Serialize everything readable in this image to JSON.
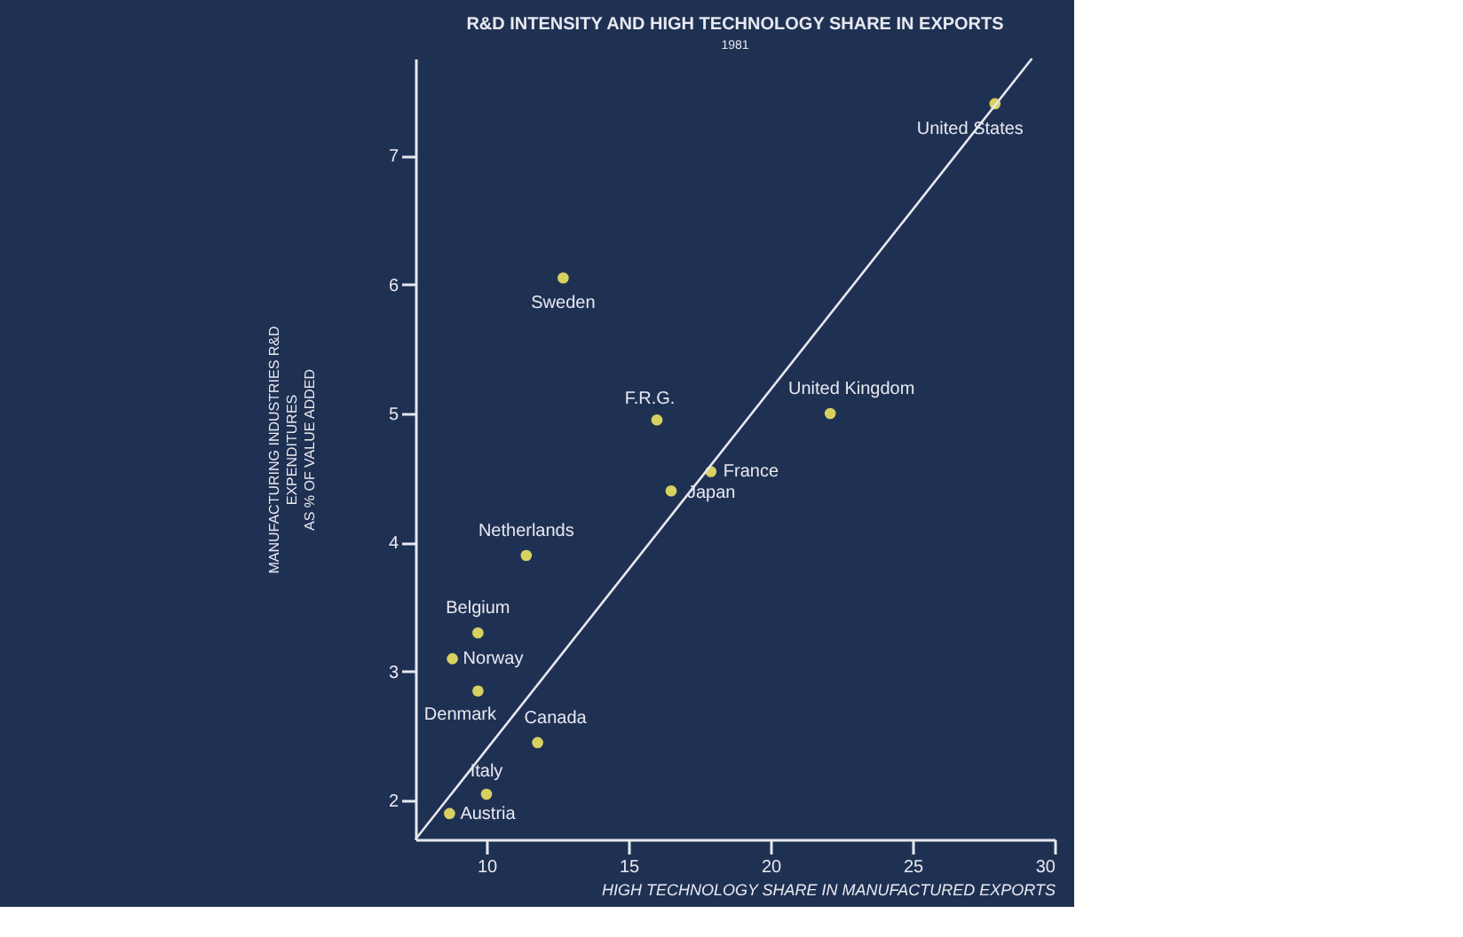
{
  "chart_data": {
    "type": "scatter",
    "title": "R&D INTENSITY AND HIGH TECHNOLOGY  SHARE IN EXPORTS",
    "subtitle": "1981",
    "xlabel": "HIGH TECHNOLOGY SHARE IN MANUFACTURED EXPORTS",
    "ylabel": "MANUFACTURING INDUSTRIES R&D\nEXPENDITURES\nAS % OF VALUE ADDED",
    "xlim": [
      7.5,
      30
    ],
    "xticks": [
      10,
      15,
      20,
      25,
      30
    ],
    "ylim": [
      1.7,
      7.75
    ],
    "yticks": [
      2,
      3,
      4,
      5,
      6,
      7
    ],
    "grid": false,
    "marker": "circle",
    "series": [
      {
        "color": "#d8d060",
        "x": [
          27.9,
          12.7,
          16.0,
          22.1,
          17.9,
          16.5,
          11.4,
          9.7,
          8.8,
          9.7,
          11.8,
          10.0,
          8.7
        ],
        "values": [
          7.4,
          6.05,
          4.95,
          5.0,
          4.55,
          4.4,
          3.9,
          3.3,
          3.1,
          2.85,
          2.45,
          2.05,
          1.9
        ]
      },
      {
        "type": "line",
        "color": "#e8e8f0",
        "line_style": "solid",
        "marker": "none",
        "x": [
          7.5,
          29.2
        ],
        "values": [
          1.7,
          7.75
        ]
      }
    ],
    "annotations": [
      {
        "text": "United States",
        "x": 27.9,
        "y": 7.4
      },
      {
        "text": "Sweden",
        "x": 12.7,
        "y": 6.05
      },
      {
        "text": "F.R.G.",
        "x": 16.0,
        "y": 4.95
      },
      {
        "text": "United Kingdom",
        "x": 22.1,
        "y": 5.0
      },
      {
        "text": "France",
        "x": 17.9,
        "y": 4.55
      },
      {
        "text": "Japan",
        "x": 16.5,
        "y": 4.4
      },
      {
        "text": "Netherlands",
        "x": 11.4,
        "y": 3.9
      },
      {
        "text": "Belgium",
        "x": 9.7,
        "y": 3.3
      },
      {
        "text": "Norway",
        "x": 8.8,
        "y": 3.1
      },
      {
        "text": "Denmark",
        "x": 9.7,
        "y": 2.85
      },
      {
        "text": "Canada",
        "x": 11.8,
        "y": 2.45
      },
      {
        "text": "Italy",
        "x": 10.0,
        "y": 2.05
      },
      {
        "text": "Austria",
        "x": 8.7,
        "y": 1.9
      }
    ]
  }
}
